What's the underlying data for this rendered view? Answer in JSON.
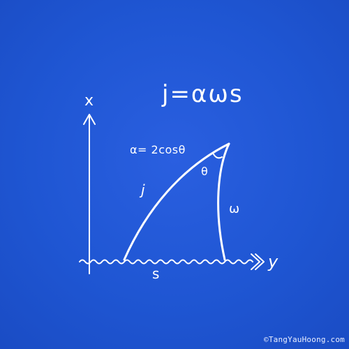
{
  "formula": "j=αωs",
  "alpha_equation": "α= 2cosθ",
  "labels": {
    "j": "j",
    "omega": "ω",
    "theta": "θ",
    "s": "s",
    "x_axis": "x",
    "y_axis": "y"
  },
  "credit": "©TangYauHoong.com",
  "colors": {
    "background": "#1f56d3",
    "ink": "#ffffff"
  }
}
